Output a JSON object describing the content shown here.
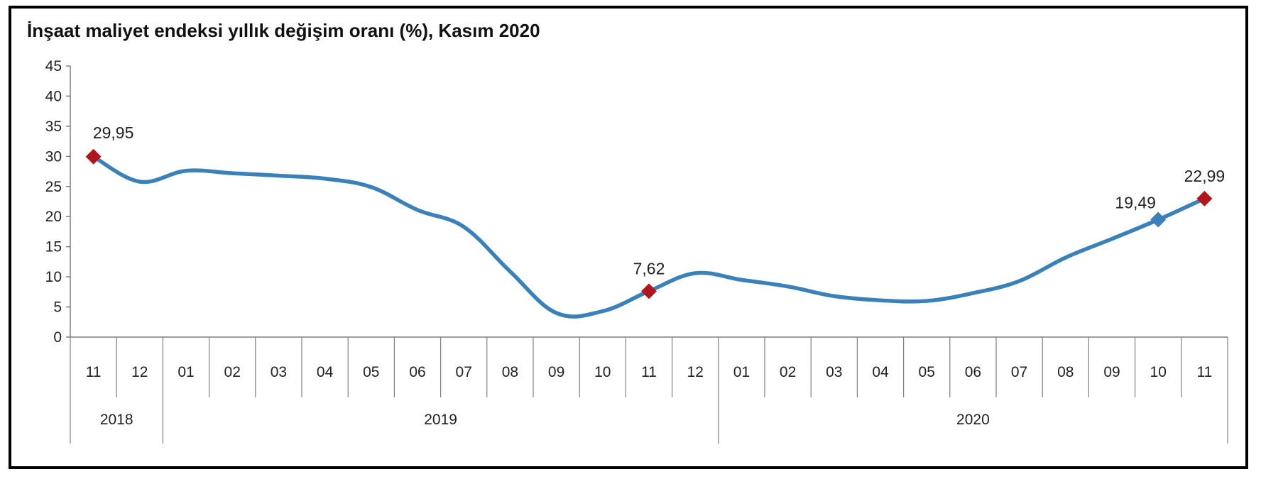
{
  "chart_data": {
    "type": "line",
    "title": "İnşaat maliyet endeksi yıllık değişim oranı (%), Kasım 2020",
    "xlabel": "",
    "ylabel": "",
    "ylim": [
      0,
      45
    ],
    "yticks": [
      "0",
      "5",
      "10",
      "15",
      "20",
      "25",
      "30",
      "35",
      "40",
      "45"
    ],
    "categories": [
      "11",
      "12",
      "01",
      "02",
      "03",
      "04",
      "05",
      "06",
      "07",
      "08",
      "09",
      "10",
      "11",
      "12",
      "01",
      "02",
      "03",
      "04",
      "05",
      "06",
      "07",
      "08",
      "09",
      "10",
      "11"
    ],
    "year_groups": [
      {
        "label": "2018",
        "start": 0,
        "end": 1
      },
      {
        "label": "2019",
        "start": 2,
        "end": 13
      },
      {
        "label": "2020",
        "start": 14,
        "end": 24
      }
    ],
    "series": [
      {
        "values": [
          29.95,
          25.8,
          27.6,
          27.2,
          26.8,
          26.3,
          24.9,
          21.1,
          18.3,
          10.9,
          4.0,
          4.3,
          7.62,
          10.6,
          9.5,
          8.4,
          6.8,
          6.1,
          6.0,
          7.3,
          9.3,
          13.2,
          16.3,
          19.49,
          22.99
        ],
        "color": "#3a80b9"
      }
    ],
    "labeled_points": [
      {
        "index": 0,
        "label": "29,95",
        "marker_color": "#b0161d"
      },
      {
        "index": 12,
        "label": "7,62",
        "marker_color": "#b0161d"
      },
      {
        "index": 23,
        "label": "19,49",
        "marker_color": "#3a80b9"
      },
      {
        "index": 24,
        "label": "22,99",
        "marker_color": "#b0161d"
      }
    ],
    "grid": false,
    "legend": "none"
  }
}
